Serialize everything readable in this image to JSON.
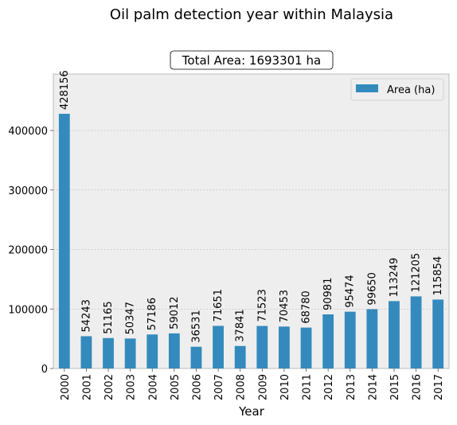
{
  "chart_data": {
    "type": "bar",
    "title": "Oil palm detection year within Malaysia",
    "subtitle": "Total Area: 1693301 ha",
    "xlabel": "Year",
    "ylabel": "",
    "categories": [
      "2000",
      "2001",
      "2002",
      "2003",
      "2004",
      "2005",
      "2006",
      "2007",
      "2008",
      "2009",
      "2010",
      "2011",
      "2012",
      "2013",
      "2014",
      "2015",
      "2016",
      "2017"
    ],
    "series": [
      {
        "name": "Area (ha)",
        "values": [
          428156,
          54243,
          51165,
          50347,
          57186,
          59012,
          36531,
          71651,
          37841,
          71523,
          70453,
          68780,
          90981,
          95474,
          99650,
          113249,
          121205,
          115854
        ],
        "color": "#348abd"
      }
    ],
    "ylim": [
      0,
      495000
    ],
    "yticks": [
      0,
      100000,
      200000,
      300000,
      400000
    ],
    "ytick_labels": [
      "0",
      "100000",
      "200000",
      "300000",
      "400000"
    ],
    "grid": true,
    "legend_position": "top-right",
    "background": "#eeeeee"
  }
}
